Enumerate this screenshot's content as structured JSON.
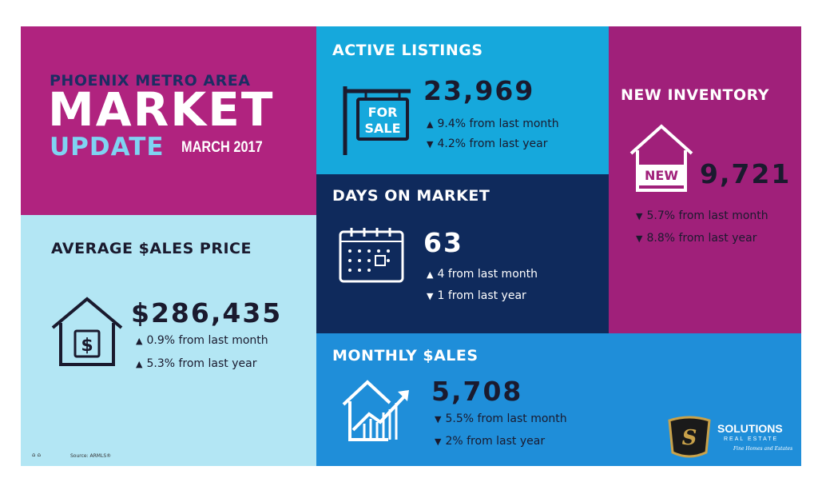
{
  "title": {
    "region": "PHOENIX METRO AREA",
    "market": "MARKET",
    "update": "UPDATE",
    "date": "MARCH 2017"
  },
  "active_listings": {
    "label": "ACTIVE LISTINGS",
    "value": "23,969",
    "stat1": "9.4% from last month",
    "stat1_dir": "up",
    "stat2": "4.2% from last year",
    "stat2_dir": "down",
    "sign_text_1": "FOR",
    "sign_text_2": "SALE"
  },
  "days_on_market": {
    "label": "DAYS ON MARKET",
    "value": "63",
    "stat1": "4 from last month",
    "stat1_dir": "up",
    "stat2": "1 from last year",
    "stat2_dir": "down"
  },
  "new_inventory": {
    "label": "NEW INVENTORY",
    "value": "9,721",
    "badge": "NEW",
    "stat1": "5.7% from last month",
    "stat1_dir": "down",
    "stat2": "8.8% from last year",
    "stat2_dir": "down"
  },
  "average_sales_price": {
    "label": "AVERAGE $ALES PRICE",
    "value": "$286,435",
    "stat1": "0.9% from last month",
    "stat1_dir": "up",
    "stat2": "5.3% from last year",
    "stat2_dir": "up"
  },
  "monthly_sales": {
    "label": "MONTHLY $ALES",
    "value": "5,708",
    "stat1": "5.5% from last month",
    "stat1_dir": "down",
    "stat2": "2% from last year",
    "stat2_dir": "down"
  },
  "footer": {
    "source": "Source: ARMLS®"
  },
  "brand": {
    "name": "SOLUTIONS",
    "sub": "REAL ESTATE",
    "tagline": "Fine Homes and Estates"
  },
  "glyphs": {
    "up": "▲",
    "down": "▼"
  }
}
